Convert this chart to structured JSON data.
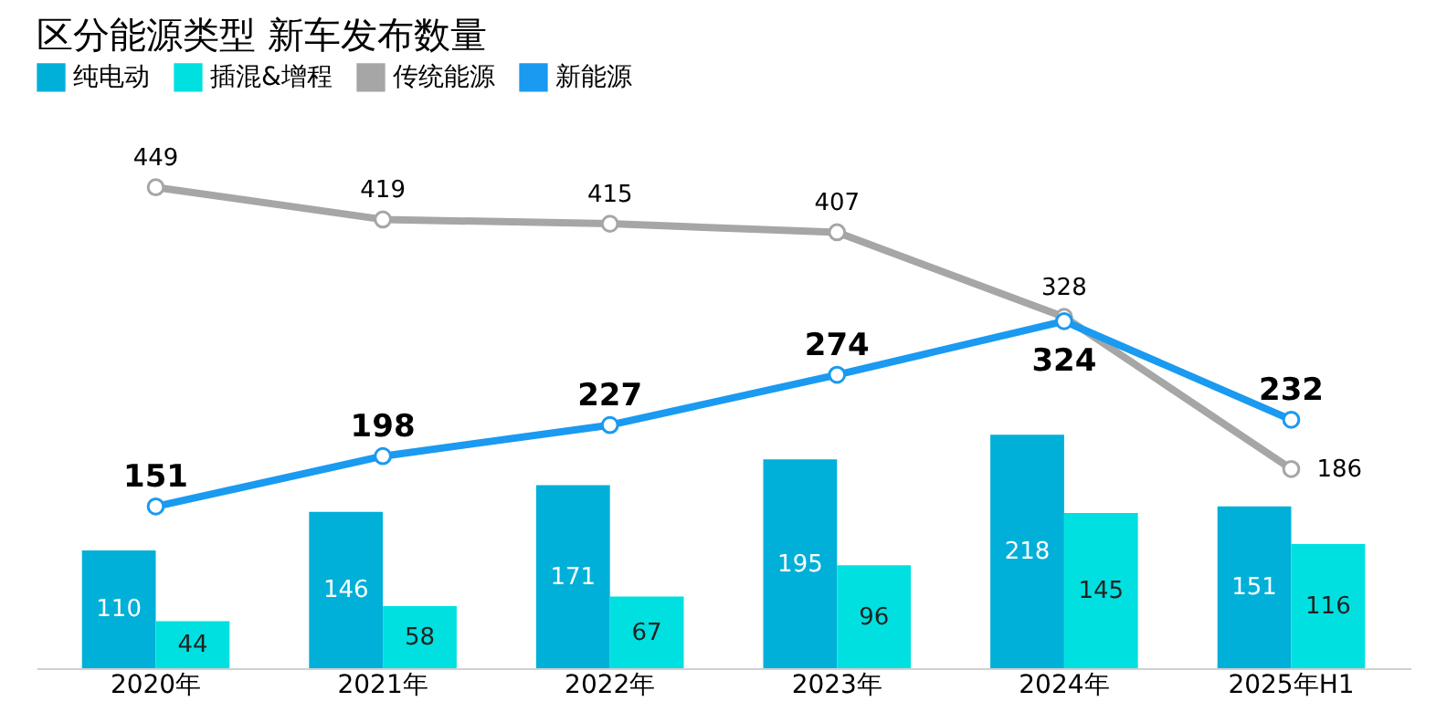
{
  "chart_data": {
    "type": "bar",
    "title": "区分能源类型 新车发布数量",
    "categories": [
      "2020年",
      "2021年",
      "2022年",
      "2023年",
      "2024年",
      "2025年H1"
    ],
    "series": [
      {
        "name": "纯电动",
        "color": "#00b0d8",
        "values": [
          110,
          146,
          171,
          195,
          218,
          151
        ]
      },
      {
        "name": "插混&增程",
        "color": "#00e0e0",
        "values": [
          44,
          58,
          67,
          96,
          145,
          116
        ]
      },
      {
        "name": "传统能源",
        "type": "line",
        "color": "#a6a6a6",
        "values": [
          449,
          419,
          415,
          407,
          328,
          186
        ]
      },
      {
        "name": "新能源",
        "type": "line",
        "color": "#1a9af0",
        "values": [
          151,
          198,
          227,
          274,
          324,
          232
        ]
      }
    ],
    "data_labels": true,
    "legend": "top",
    "grid": false,
    "marker": "circle",
    "line_style": "solid"
  }
}
